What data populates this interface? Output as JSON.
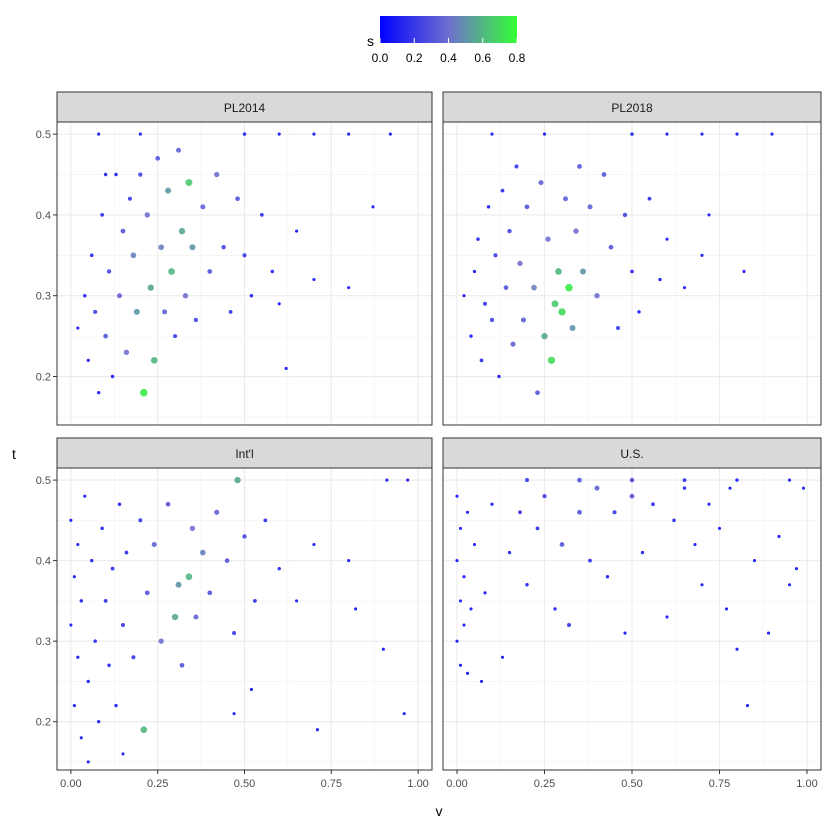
{
  "chart_data": {
    "type": "scatter",
    "xlabel": "v",
    "ylabel": "t",
    "legend": {
      "title": "s",
      "placement": "top",
      "type": "colorbar",
      "range": [
        0,
        0.8
      ],
      "ticks": [
        "0.0",
        "0.2",
        "0.4",
        "0.6",
        "0.8"
      ],
      "color_low": "#0000ff",
      "color_high": "#33ff33"
    },
    "xlim": [
      -0.04,
      1.04
    ],
    "ylim": [
      0.14,
      0.515
    ],
    "x_ticks": [
      0,
      0.25,
      0.5,
      0.75,
      1
    ],
    "x_tick_labels": [
      "0.00",
      "0.25",
      "0.50",
      "0.75",
      "1.00"
    ],
    "y_ticks": [
      0.2,
      0.3,
      0.4,
      0.5
    ],
    "y_tick_labels": [
      "0.2",
      "0.3",
      "0.4",
      "0.5"
    ],
    "grid": true,
    "panels": [
      {
        "title": "PL2014",
        "points": [
          [
            0.02,
            0.26,
            0.05
          ],
          [
            0.04,
            0.3,
            0.1
          ],
          [
            0.05,
            0.22,
            0.08
          ],
          [
            0.06,
            0.35,
            0.12
          ],
          [
            0.07,
            0.28,
            0.2
          ],
          [
            0.08,
            0.18,
            0.1
          ],
          [
            0.09,
            0.4,
            0.15
          ],
          [
            0.1,
            0.25,
            0.3
          ],
          [
            0.11,
            0.33,
            0.25
          ],
          [
            0.12,
            0.2,
            0.1
          ],
          [
            0.13,
            0.45,
            0.1
          ],
          [
            0.14,
            0.3,
            0.35
          ],
          [
            0.15,
            0.38,
            0.3
          ],
          [
            0.16,
            0.23,
            0.4
          ],
          [
            0.17,
            0.42,
            0.2
          ],
          [
            0.18,
            0.35,
            0.45
          ],
          [
            0.19,
            0.28,
            0.5
          ],
          [
            0.2,
            0.45,
            0.25
          ],
          [
            0.21,
            0.18,
            0.75
          ],
          [
            0.22,
            0.4,
            0.4
          ],
          [
            0.23,
            0.31,
            0.55
          ],
          [
            0.24,
            0.22,
            0.6
          ],
          [
            0.25,
            0.47,
            0.3
          ],
          [
            0.26,
            0.36,
            0.45
          ],
          [
            0.27,
            0.28,
            0.35
          ],
          [
            0.28,
            0.43,
            0.5
          ],
          [
            0.29,
            0.33,
            0.6
          ],
          [
            0.3,
            0.25,
            0.2
          ],
          [
            0.31,
            0.48,
            0.35
          ],
          [
            0.32,
            0.38,
            0.55
          ],
          [
            0.33,
            0.3,
            0.4
          ],
          [
            0.34,
            0.44,
            0.65
          ],
          [
            0.35,
            0.36,
            0.5
          ],
          [
            0.36,
            0.27,
            0.25
          ],
          [
            0.38,
            0.41,
            0.35
          ],
          [
            0.4,
            0.33,
            0.3
          ],
          [
            0.42,
            0.45,
            0.4
          ],
          [
            0.44,
            0.36,
            0.25
          ],
          [
            0.46,
            0.28,
            0.15
          ],
          [
            0.48,
            0.42,
            0.3
          ],
          [
            0.5,
            0.35,
            0.2
          ],
          [
            0.52,
            0.3,
            0.1
          ],
          [
            0.55,
            0.4,
            0.15
          ],
          [
            0.58,
            0.33,
            0.1
          ],
          [
            0.6,
            0.29,
            0.05
          ],
          [
            0.62,
            0.21,
            0.05
          ],
          [
            0.65,
            0.38,
            0.05
          ],
          [
            0.7,
            0.32,
            0.05
          ],
          [
            0.8,
            0.31,
            0.05
          ],
          [
            0.87,
            0.41,
            0.05
          ],
          [
            0.5,
            0.5,
            0.1
          ],
          [
            0.6,
            0.5,
            0.05
          ],
          [
            0.7,
            0.5,
            0.05
          ],
          [
            0.8,
            0.5,
            0.05
          ],
          [
            0.92,
            0.5,
            0.05
          ],
          [
            0.08,
            0.5,
            0.05
          ],
          [
            0.2,
            0.5,
            0.05
          ],
          [
            0.1,
            0.45,
            0.1
          ]
        ]
      },
      {
        "title": "PL2018",
        "points": [
          [
            0.02,
            0.3,
            0.05
          ],
          [
            0.04,
            0.25,
            0.1
          ],
          [
            0.05,
            0.33,
            0.08
          ],
          [
            0.06,
            0.37,
            0.12
          ],
          [
            0.07,
            0.22,
            0.15
          ],
          [
            0.08,
            0.29,
            0.2
          ],
          [
            0.09,
            0.41,
            0.1
          ],
          [
            0.1,
            0.27,
            0.25
          ],
          [
            0.11,
            0.35,
            0.2
          ],
          [
            0.12,
            0.2,
            0.1
          ],
          [
            0.13,
            0.43,
            0.15
          ],
          [
            0.14,
            0.31,
            0.3
          ],
          [
            0.15,
            0.38,
            0.25
          ],
          [
            0.16,
            0.24,
            0.35
          ],
          [
            0.17,
            0.46,
            0.2
          ],
          [
            0.18,
            0.34,
            0.4
          ],
          [
            0.19,
            0.27,
            0.35
          ],
          [
            0.2,
            0.41,
            0.3
          ],
          [
            0.22,
            0.31,
            0.45
          ],
          [
            0.23,
            0.18,
            0.3
          ],
          [
            0.24,
            0.44,
            0.35
          ],
          [
            0.25,
            0.25,
            0.55
          ],
          [
            0.26,
            0.37,
            0.4
          ],
          [
            0.27,
            0.22,
            0.7
          ],
          [
            0.28,
            0.29,
            0.65
          ],
          [
            0.29,
            0.33,
            0.6
          ],
          [
            0.3,
            0.28,
            0.7
          ],
          [
            0.31,
            0.42,
            0.35
          ],
          [
            0.32,
            0.31,
            0.75
          ],
          [
            0.33,
            0.26,
            0.5
          ],
          [
            0.34,
            0.38,
            0.4
          ],
          [
            0.35,
            0.46,
            0.3
          ],
          [
            0.36,
            0.33,
            0.5
          ],
          [
            0.38,
            0.41,
            0.35
          ],
          [
            0.4,
            0.3,
            0.4
          ],
          [
            0.42,
            0.45,
            0.3
          ],
          [
            0.44,
            0.36,
            0.3
          ],
          [
            0.46,
            0.26,
            0.2
          ],
          [
            0.48,
            0.4,
            0.25
          ],
          [
            0.5,
            0.33,
            0.15
          ],
          [
            0.52,
            0.28,
            0.1
          ],
          [
            0.55,
            0.42,
            0.15
          ],
          [
            0.58,
            0.32,
            0.1
          ],
          [
            0.6,
            0.37,
            0.05
          ],
          [
            0.65,
            0.31,
            0.05
          ],
          [
            0.7,
            0.35,
            0.05
          ],
          [
            0.72,
            0.4,
            0.05
          ],
          [
            0.82,
            0.33,
            0.05
          ],
          [
            0.5,
            0.5,
            0.1
          ],
          [
            0.6,
            0.5,
            0.05
          ],
          [
            0.7,
            0.5,
            0.05
          ],
          [
            0.8,
            0.5,
            0.05
          ],
          [
            0.9,
            0.5,
            0.05
          ],
          [
            0.1,
            0.5,
            0.05
          ],
          [
            0.25,
            0.5,
            0.05
          ]
        ]
      },
      {
        "title": "Int'l",
        "points": [
          [
            0.0,
            0.32,
            0.05
          ],
          [
            0.0,
            0.45,
            0.05
          ],
          [
            0.01,
            0.22,
            0.05
          ],
          [
            0.01,
            0.38,
            0.05
          ],
          [
            0.02,
            0.28,
            0.08
          ],
          [
            0.02,
            0.42,
            0.05
          ],
          [
            0.03,
            0.18,
            0.05
          ],
          [
            0.03,
            0.35,
            0.1
          ],
          [
            0.04,
            0.48,
            0.05
          ],
          [
            0.05,
            0.25,
            0.1
          ],
          [
            0.06,
            0.4,
            0.1
          ],
          [
            0.07,
            0.3,
            0.12
          ],
          [
            0.08,
            0.2,
            0.1
          ],
          [
            0.09,
            0.44,
            0.1
          ],
          [
            0.1,
            0.35,
            0.15
          ],
          [
            0.11,
            0.27,
            0.12
          ],
          [
            0.12,
            0.39,
            0.15
          ],
          [
            0.13,
            0.22,
            0.1
          ],
          [
            0.14,
            0.47,
            0.1
          ],
          [
            0.15,
            0.32,
            0.2
          ],
          [
            0.16,
            0.41,
            0.15
          ],
          [
            0.18,
            0.28,
            0.2
          ],
          [
            0.2,
            0.45,
            0.2
          ],
          [
            0.21,
            0.19,
            0.6
          ],
          [
            0.22,
            0.36,
            0.3
          ],
          [
            0.24,
            0.42,
            0.35
          ],
          [
            0.26,
            0.3,
            0.4
          ],
          [
            0.28,
            0.47,
            0.3
          ],
          [
            0.3,
            0.33,
            0.55
          ],
          [
            0.31,
            0.37,
            0.5
          ],
          [
            0.32,
            0.27,
            0.3
          ],
          [
            0.34,
            0.38,
            0.6
          ],
          [
            0.35,
            0.44,
            0.4
          ],
          [
            0.36,
            0.33,
            0.35
          ],
          [
            0.38,
            0.41,
            0.45
          ],
          [
            0.4,
            0.36,
            0.3
          ],
          [
            0.42,
            0.46,
            0.35
          ],
          [
            0.45,
            0.4,
            0.3
          ],
          [
            0.47,
            0.31,
            0.2
          ],
          [
            0.48,
            0.5,
            0.55
          ],
          [
            0.5,
            0.43,
            0.25
          ],
          [
            0.53,
            0.35,
            0.15
          ],
          [
            0.56,
            0.45,
            0.15
          ],
          [
            0.6,
            0.39,
            0.1
          ],
          [
            0.65,
            0.35,
            0.05
          ],
          [
            0.7,
            0.42,
            0.05
          ],
          [
            0.71,
            0.19,
            0.05
          ],
          [
            0.8,
            0.4,
            0.05
          ],
          [
            0.82,
            0.34,
            0.05
          ],
          [
            0.9,
            0.29,
            0.05
          ],
          [
            0.91,
            0.5,
            0.05
          ],
          [
            0.96,
            0.21,
            0.05
          ],
          [
            0.97,
            0.5,
            0.05
          ],
          [
            0.47,
            0.21,
            0.05
          ],
          [
            0.52,
            0.24,
            0.05
          ],
          [
            0.15,
            0.16,
            0.05
          ],
          [
            0.05,
            0.15,
            0.05
          ]
        ]
      },
      {
        "title": "U.S.",
        "points": [
          [
            0.0,
            0.3,
            0.05
          ],
          [
            0.0,
            0.4,
            0.05
          ],
          [
            0.0,
            0.48,
            0.05
          ],
          [
            0.01,
            0.27,
            0.05
          ],
          [
            0.01,
            0.35,
            0.05
          ],
          [
            0.01,
            0.44,
            0.05
          ],
          [
            0.02,
            0.32,
            0.05
          ],
          [
            0.02,
            0.38,
            0.05
          ],
          [
            0.03,
            0.26,
            0.05
          ],
          [
            0.03,
            0.46,
            0.05
          ],
          [
            0.04,
            0.34,
            0.05
          ],
          [
            0.05,
            0.42,
            0.05
          ],
          [
            0.07,
            0.25,
            0.05
          ],
          [
            0.08,
            0.36,
            0.05
          ],
          [
            0.1,
            0.47,
            0.08
          ],
          [
            0.13,
            0.28,
            0.05
          ],
          [
            0.15,
            0.41,
            0.1
          ],
          [
            0.18,
            0.46,
            0.15
          ],
          [
            0.2,
            0.37,
            0.1
          ],
          [
            0.23,
            0.44,
            0.15
          ],
          [
            0.25,
            0.48,
            0.2
          ],
          [
            0.28,
            0.34,
            0.1
          ],
          [
            0.3,
            0.42,
            0.3
          ],
          [
            0.32,
            0.32,
            0.2
          ],
          [
            0.35,
            0.46,
            0.3
          ],
          [
            0.38,
            0.4,
            0.15
          ],
          [
            0.4,
            0.49,
            0.35
          ],
          [
            0.43,
            0.38,
            0.1
          ],
          [
            0.45,
            0.46,
            0.2
          ],
          [
            0.48,
            0.31,
            0.05
          ],
          [
            0.5,
            0.48,
            0.3
          ],
          [
            0.53,
            0.41,
            0.1
          ],
          [
            0.56,
            0.47,
            0.15
          ],
          [
            0.6,
            0.33,
            0.05
          ],
          [
            0.62,
            0.45,
            0.1
          ],
          [
            0.65,
            0.49,
            0.1
          ],
          [
            0.68,
            0.42,
            0.05
          ],
          [
            0.7,
            0.37,
            0.05
          ],
          [
            0.72,
            0.47,
            0.05
          ],
          [
            0.75,
            0.44,
            0.05
          ],
          [
            0.77,
            0.34,
            0.05
          ],
          [
            0.78,
            0.49,
            0.05
          ],
          [
            0.8,
            0.29,
            0.05
          ],
          [
            0.83,
            0.22,
            0.05
          ],
          [
            0.85,
            0.4,
            0.05
          ],
          [
            0.89,
            0.31,
            0.05
          ],
          [
            0.92,
            0.43,
            0.05
          ],
          [
            0.95,
            0.37,
            0.05
          ],
          [
            0.97,
            0.39,
            0.05
          ],
          [
            0.99,
            0.49,
            0.05
          ],
          [
            0.2,
            0.5,
            0.2
          ],
          [
            0.35,
            0.5,
            0.3
          ],
          [
            0.5,
            0.5,
            0.25
          ],
          [
            0.65,
            0.5,
            0.15
          ],
          [
            0.8,
            0.5,
            0.1
          ],
          [
            0.95,
            0.5,
            0.05
          ]
        ]
      }
    ]
  }
}
